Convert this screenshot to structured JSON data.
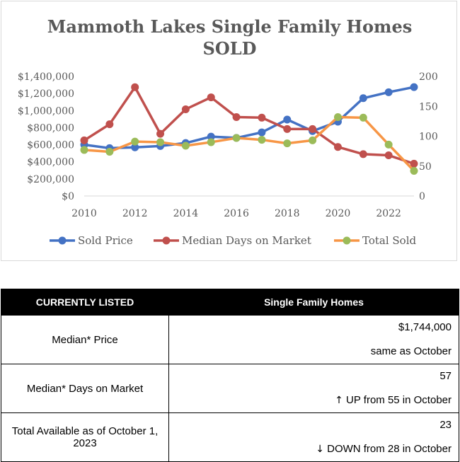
{
  "chart_data": {
    "type": "line",
    "title": "Mammoth Lakes Single Family Homes",
    "subtitle": "SOLD",
    "x": [
      2010,
      2011,
      2012,
      2013,
      2014,
      2015,
      2016,
      2017,
      2018,
      2019,
      2020,
      2021,
      2022,
      2023
    ],
    "xlim": [
      2010,
      2023
    ],
    "x_ticks": [
      "2010",
      "2012",
      "2014",
      "2016",
      "2018",
      "2020",
      "2022"
    ],
    "y_left": {
      "lim": [
        0,
        1400000
      ],
      "ticks": [
        "$0",
        "$200,000",
        "$400,000",
        "$600,000",
        "$800,000",
        "$1,000,000",
        "$1,200,000",
        "$1,400,000"
      ]
    },
    "y_right": {
      "lim": [
        0,
        200
      ],
      "ticks": [
        "0",
        "50",
        "100",
        "150",
        "200"
      ]
    },
    "grid": false,
    "legend": "bottom",
    "series": [
      {
        "name": "Sold Price",
        "axis": "left",
        "color": "#4472c4",
        "values": [
          600000,
          560000,
          570000,
          585000,
          620000,
          695000,
          680000,
          745000,
          895000,
          760000,
          870000,
          1145000,
          1215000,
          1275000
        ]
      },
      {
        "name": "Median Days on Market",
        "axis": "right",
        "color": "#c0504d",
        "values": [
          93,
          120,
          182,
          104,
          145,
          165,
          132,
          131,
          112,
          112,
          82,
          70,
          68,
          54
        ]
      },
      {
        "name": "Total Sold",
        "axis": "right",
        "color": "#f79646",
        "marker": "#9bbb59",
        "values": [
          77,
          74,
          91,
          90,
          84,
          90,
          97,
          94,
          88,
          93,
          132,
          131,
          86,
          42
        ]
      }
    ]
  },
  "table": {
    "headers": [
      "CURRENTLY LISTED",
      "Single Family Homes"
    ],
    "rows": [
      {
        "label": "Median* Price",
        "value": "$1,744,000",
        "change_arrow": "",
        "change": "same as October"
      },
      {
        "label": "Median* Days on Market",
        "value": "57",
        "change_arrow": "↑",
        "change": "UP from 55 in October"
      },
      {
        "label": "Total Available as of October 1, 2023",
        "value": "23",
        "change_arrow": "↓",
        "change": "DOWN from 28 in October"
      }
    ]
  }
}
